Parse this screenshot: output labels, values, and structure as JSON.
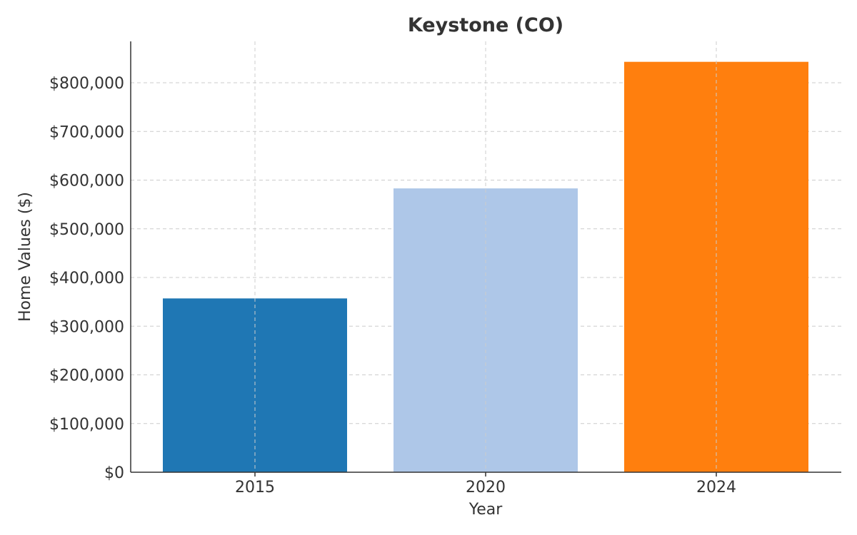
{
  "chart_data": {
    "type": "bar",
    "title": "Keystone (CO)",
    "xlabel": "Year",
    "ylabel": "Home Values ($)",
    "categories": [
      "2015",
      "2020",
      "2024"
    ],
    "values": [
      357000,
      583000,
      843000
    ],
    "bar_colors": [
      "#1f77b4",
      "#aec7e8",
      "#ff7f0e"
    ],
    "ylim": [
      0,
      885000
    ],
    "y_ticks": [
      0,
      100000,
      200000,
      300000,
      400000,
      500000,
      600000,
      700000,
      800000
    ],
    "y_tick_labels": [
      "$0",
      "$100,000",
      "$200,000",
      "$300,000",
      "$400,000",
      "$500,000",
      "$600,000",
      "$700,000",
      "$800,000"
    ],
    "grid": true,
    "legend": "none"
  }
}
